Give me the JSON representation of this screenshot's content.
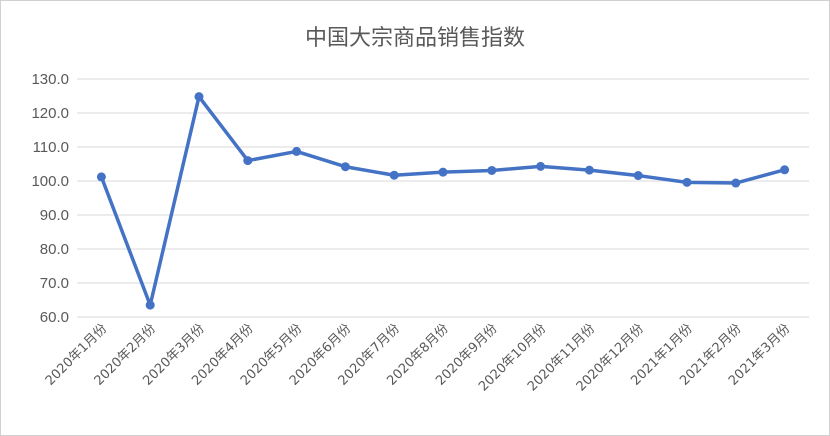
{
  "chart_data": {
    "type": "line",
    "title": "中国大宗商品销售指数",
    "xlabel": "",
    "ylabel": "",
    "categories": [
      "2020年1月份",
      "2020年2月份",
      "2020年3月份",
      "2020年4月份",
      "2020年5月份",
      "2020年6月份",
      "2020年7月份",
      "2020年8月份",
      "2020年9月份",
      "2020年10月份",
      "2020年11月份",
      "2020年12月份",
      "2021年1月份",
      "2021年2月份",
      "2021年3月份"
    ],
    "series": [
      {
        "values": [
          101.2,
          63.5,
          124.8,
          106.0,
          108.7,
          104.2,
          101.7,
          102.6,
          103.1,
          104.3,
          103.2,
          101.6,
          99.6,
          99.4,
          103.3
        ],
        "color": "#4472c4"
      }
    ],
    "ylim": [
      60,
      130
    ],
    "yticks": [
      "60.0",
      "70.0",
      "80.0",
      "90.0",
      "100.0",
      "110.0",
      "120.0",
      "130.0"
    ],
    "grid": true,
    "legend": "none"
  }
}
